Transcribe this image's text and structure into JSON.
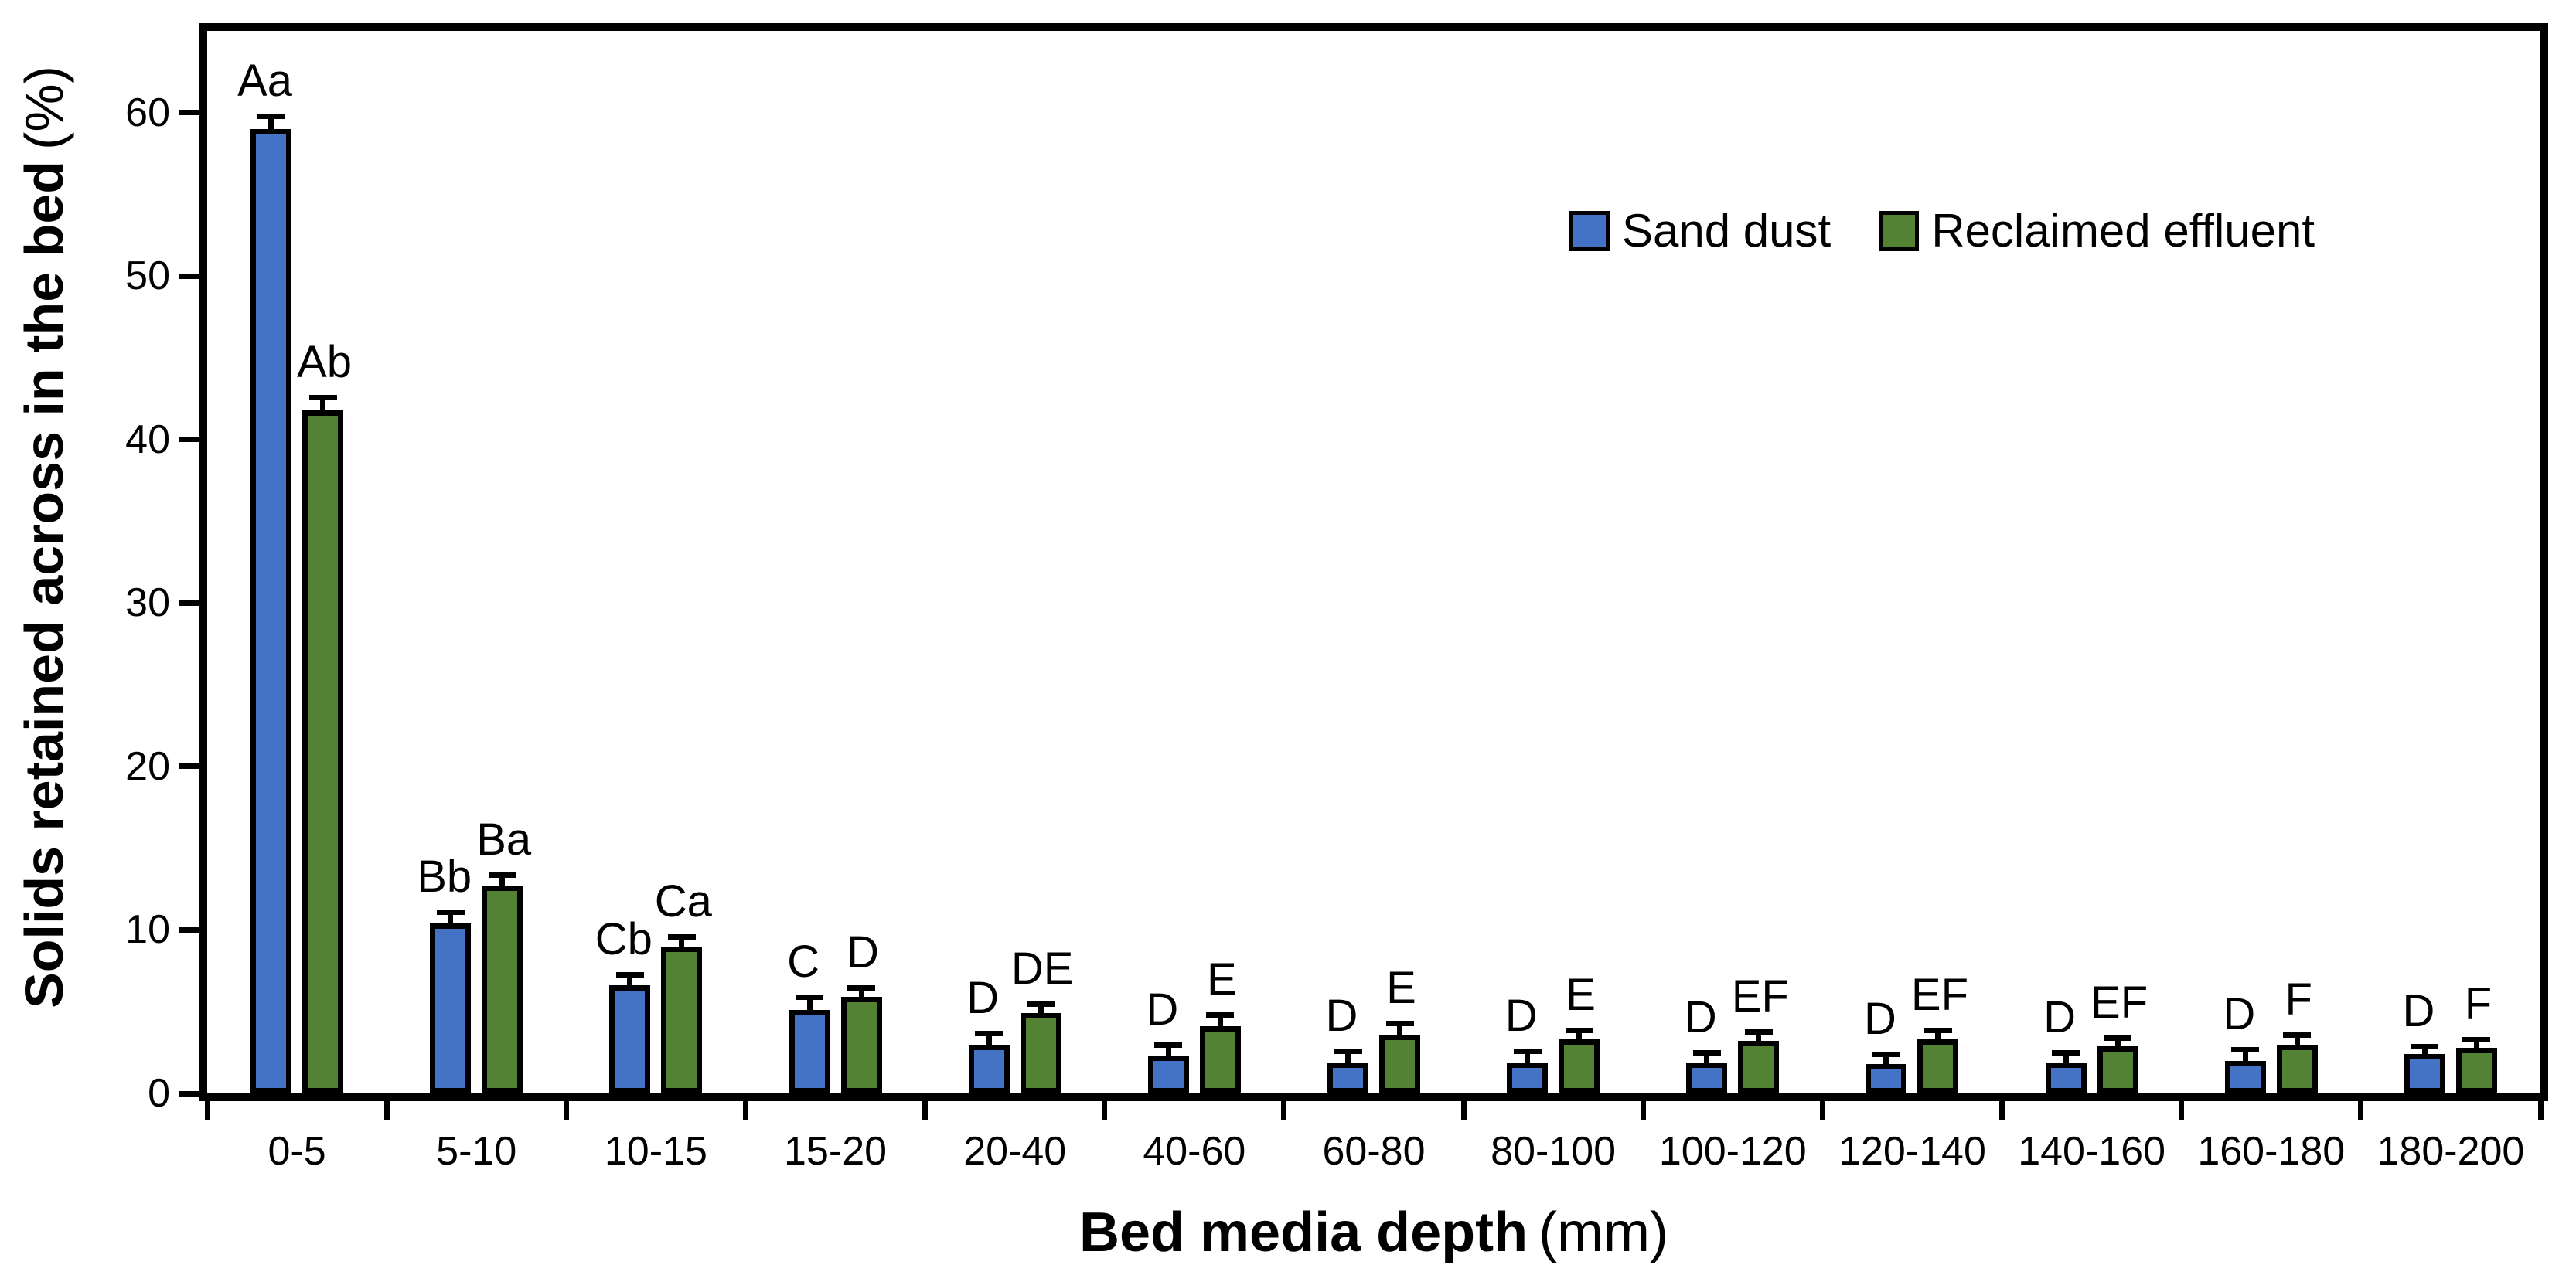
{
  "figure": {
    "background_color": "#ffffff",
    "frame_color": "#000000"
  },
  "axes": {
    "y_title_main": "Solids retained across in the bed",
    "y_title_unit": "(%)",
    "x_title_main": "Bed media depth",
    "x_title_unit": "(mm)",
    "y_ticks": [
      0,
      10,
      20,
      30,
      40,
      50,
      60
    ]
  },
  "chart_data": {
    "type": "bar",
    "title": "",
    "xlabel": "Bed media depth (mm)",
    "ylabel": "Solids retained across in the bed (%)",
    "ylim": [
      0,
      65
    ],
    "grid": false,
    "legend_position": "top-right-inside",
    "categories": [
      "0-5",
      "5-10",
      "10-15",
      "15-20",
      "20-40",
      "40-60",
      "60-80",
      "80-100",
      "100-120",
      "120-140",
      "140-160",
      "160-180",
      "180-200"
    ],
    "series": [
      {
        "name": "Sand dust",
        "color": "#4472C4",
        "values": [
          59.0,
          10.4,
          6.6,
          5.1,
          3.0,
          2.3,
          1.9,
          1.9,
          1.9,
          1.8,
          1.9,
          2.0,
          2.4
        ],
        "errors": [
          0.8,
          0.7,
          0.7,
          0.8,
          0.7,
          0.7,
          0.7,
          0.7,
          0.6,
          0.6,
          0.6,
          0.7,
          0.5
        ],
        "letters": [
          "Aa",
          "Bb",
          "Cb",
          "C",
          "D",
          "D",
          "D",
          "D",
          "D",
          "D",
          "D",
          "D",
          "D"
        ]
      },
      {
        "name": "Reclaimed effluent",
        "color": "#548235",
        "values": [
          41.8,
          12.7,
          9.0,
          5.9,
          4.9,
          4.1,
          3.6,
          3.3,
          3.2,
          3.3,
          2.9,
          3.0,
          2.8
        ],
        "errors": [
          0.8,
          0.7,
          0.6,
          0.6,
          0.6,
          0.7,
          0.7,
          0.6,
          0.6,
          0.6,
          0.5,
          0.6,
          0.5
        ],
        "letters": [
          "Ab",
          "Ba",
          "Ca",
          "D",
          "DE",
          "E",
          "E",
          "E",
          "EF",
          "EF",
          "EF",
          "F",
          "F"
        ]
      }
    ]
  }
}
